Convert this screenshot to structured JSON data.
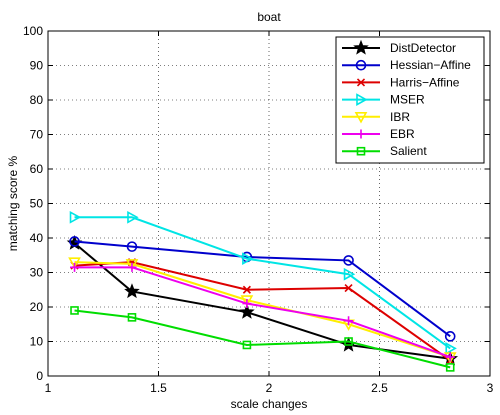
{
  "chart_data": {
    "type": "line",
    "title": "boat",
    "xlabel": "scale changes",
    "ylabel": "matching score %",
    "xlim": [
      1,
      3
    ],
    "ylim": [
      0,
      100
    ],
    "xticks": [
      1,
      1.5,
      2,
      2.5,
      3
    ],
    "xtick_labels": [
      "1",
      "1.5",
      "2",
      "2.5",
      "3"
    ],
    "yticks": [
      0,
      10,
      20,
      30,
      40,
      50,
      60,
      70,
      80,
      90,
      100
    ],
    "ytick_labels": [
      "0",
      "10",
      "20",
      "30",
      "40",
      "50",
      "60",
      "70",
      "80",
      "90",
      "100"
    ],
    "grid": true,
    "legend_position": "top-right",
    "x": [
      1.12,
      1.38,
      1.9,
      2.36,
      2.82
    ],
    "series": [
      {
        "name": "DistDetector",
        "color": "#000000",
        "marker": "star",
        "values": [
          38.5,
          24.5,
          18.5,
          9.0,
          5.0
        ]
      },
      {
        "name": "Hessian−Affine",
        "color": "#0000cc",
        "marker": "circle",
        "values": [
          39.0,
          37.5,
          34.5,
          33.5,
          11.5
        ]
      },
      {
        "name": "Harris−Affine",
        "color": "#dd0000",
        "marker": "x",
        "values": [
          32.0,
          33.0,
          25.0,
          25.5,
          4.5
        ]
      },
      {
        "name": "MSER",
        "color": "#00e5e5",
        "marker": "triangle-right",
        "values": [
          46.0,
          46.0,
          34.0,
          29.5,
          8.0
        ]
      },
      {
        "name": "IBR",
        "color": "#ffee00",
        "marker": "triangle-down",
        "values": [
          33.0,
          32.5,
          22.0,
          15.0,
          5.5
        ]
      },
      {
        "name": "EBR",
        "color": "#ee00ee",
        "marker": "plus",
        "values": [
          31.5,
          31.5,
          21.0,
          16.0,
          5.5
        ]
      },
      {
        "name": "Salient",
        "color": "#00dd00",
        "marker": "square",
        "values": [
          19.0,
          17.0,
          9.0,
          10.0,
          2.5
        ]
      }
    ]
  }
}
